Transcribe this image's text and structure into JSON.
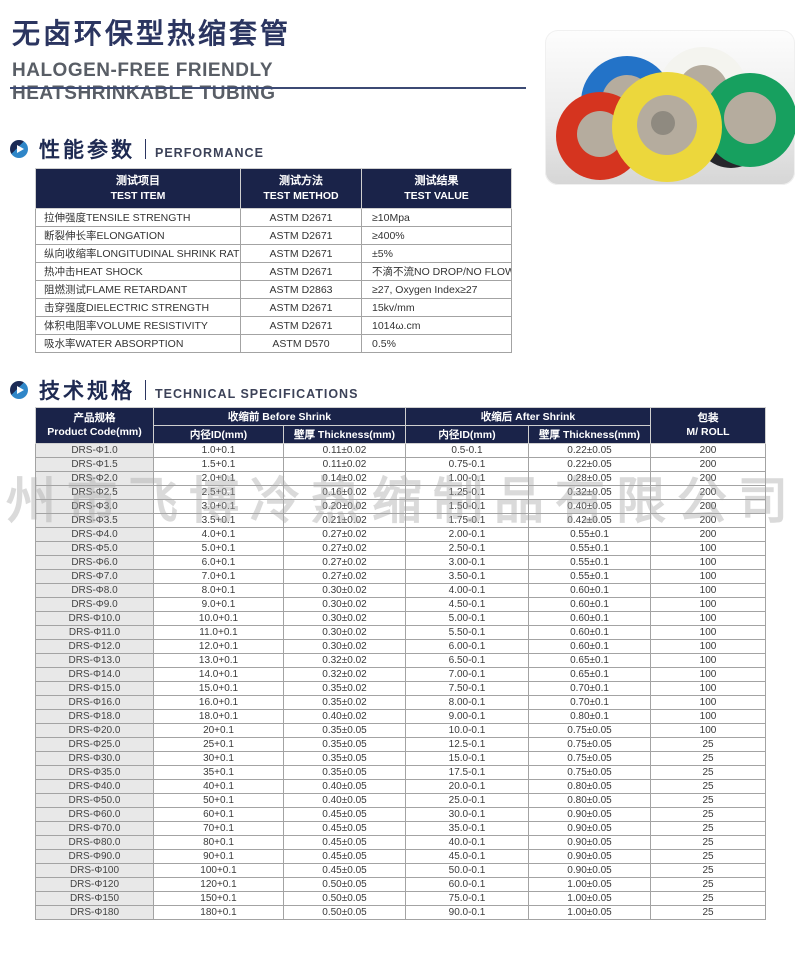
{
  "page": {
    "title_cn": "无卤环保型热缩套管",
    "title_en_line1": "HALOGEN-FREE FRIENDLY",
    "title_en_line2": "HEATSHRINKABLE TUBING"
  },
  "watermark_text": "州市飞博冷热缩制品有限公司",
  "colors": {
    "navy_header": "#1a2349",
    "title_navy": "#2b3560",
    "accent_blue": "#2f86c8"
  },
  "photo": {
    "description": "colored heat-shrink tubing rolls",
    "roll_colors": [
      "#2373c8",
      "#f4f4ef",
      "#26262b",
      "#d5341f",
      "#17a05f",
      "#ecd73c"
    ],
    "core_color": "#b5ac9e"
  },
  "performance": {
    "heading_cn": "性能参数",
    "heading_en": "PERFORMANCE",
    "columns": [
      {
        "cn": "测试项目",
        "en": "TEST ITEM"
      },
      {
        "cn": "测试方法",
        "en": "TEST METHOD"
      },
      {
        "cn": "测试结果",
        "en": "TEST VALUE"
      }
    ],
    "rows": [
      {
        "item": "拉伸强度TENSILE STRENGTH",
        "method": "ASTM D2671",
        "value": "≥10Mpa"
      },
      {
        "item": "断裂伸长率ELONGATION",
        "method": "ASTM D2671",
        "value": "≥400%"
      },
      {
        "item": "纵向收缩率LONGITUDINAL SHRINK RATIO",
        "method": "ASTM D2671",
        "value": "±5%"
      },
      {
        "item": "热冲击HEAT SHOCK",
        "method": "ASTM D2671",
        "value": "不滴不流NO DROP/NO FLOW"
      },
      {
        "item": "阻燃测试FLAME RETARDANT",
        "method": "ASTM D2863",
        "value": "≥27, Oxygen Index≥27"
      },
      {
        "item": "击穿强度DIELECTRIC STRENGTH",
        "method": "ASTM D2671",
        "value": "15kv/mm"
      },
      {
        "item": "体积电阻率VOLUME RESISTIVITY",
        "method": "ASTM D2671",
        "value": "1014ω.cm"
      },
      {
        "item": "吸水率WATER ABSORPTION",
        "method": "ASTM D570",
        "value": "0.5%"
      }
    ]
  },
  "specs": {
    "heading_cn": "技术规格",
    "heading_en": "TECHNICAL SPECIFICATIONS",
    "header": {
      "product_code_cn": "产品规格",
      "product_code_en": "Product Code(mm)",
      "before_shrink": "收缩前 Before Shrink",
      "after_shrink": "收缩后 After Shrink",
      "id_label": "内径ID(mm)",
      "thickness_label": "壁厚 Thickness(mm)",
      "pack_cn": "包装",
      "pack_en": "M/ ROLL"
    },
    "rows": [
      [
        "DRS-Φ1.0",
        "1.0+0.1",
        "0.11±0.02",
        "0.5-0.1",
        "0.22±0.05",
        "200"
      ],
      [
        "DRS-Φ1.5",
        "1.5+0.1",
        "0.11±0.02",
        "0.75-0.1",
        "0.22±0.05",
        "200"
      ],
      [
        "DRS-Φ2.0",
        "2.0+0.1",
        "0.14±0.02",
        "1.00-0.1",
        "0.28±0.05",
        "200"
      ],
      [
        "DRS-Φ2.5",
        "2.5+0.1",
        "0.16±0.02",
        "1.25-0.1",
        "0.32±0.05",
        "200"
      ],
      [
        "DRS-Φ3.0",
        "3.0+0.1",
        "0.20±0.02",
        "1.50-0.1",
        "0.40±0.05",
        "200"
      ],
      [
        "DRS-Φ3.5",
        "3.5+0.1",
        "0.21±0.02",
        "1.75-0.1",
        "0.42±0.05",
        "200"
      ],
      [
        "DRS-Φ4.0",
        "4.0+0.1",
        "0.27±0.02",
        "2.00-0.1",
        "0.55±0.1",
        "200"
      ],
      [
        "DRS-Φ5.0",
        "5.0+0.1",
        "0.27±0.02",
        "2.50-0.1",
        "0.55±0.1",
        "100"
      ],
      [
        "DRS-Φ6.0",
        "6.0+0.1",
        "0.27±0.02",
        "3.00-0.1",
        "0.55±0.1",
        "100"
      ],
      [
        "DRS-Φ7.0",
        "7.0+0.1",
        "0.27±0.02",
        "3.50-0.1",
        "0.55±0.1",
        "100"
      ],
      [
        "DRS-Φ8.0",
        "8.0+0.1",
        "0.30±0.02",
        "4.00-0.1",
        "0.60±0.1",
        "100"
      ],
      [
        "DRS-Φ9.0",
        "9.0+0.1",
        "0.30±0.02",
        "4.50-0.1",
        "0.60±0.1",
        "100"
      ],
      [
        "DRS-Φ10.0",
        "10.0+0.1",
        "0.30±0.02",
        "5.00-0.1",
        "0.60±0.1",
        "100"
      ],
      [
        "DRS-Φ11.0",
        "11.0+0.1",
        "0.30±0.02",
        "5.50-0.1",
        "0.60±0.1",
        "100"
      ],
      [
        "DRS-Φ12.0",
        "12.0+0.1",
        "0.30±0.02",
        "6.00-0.1",
        "0.60±0.1",
        "100"
      ],
      [
        "DRS-Φ13.0",
        "13.0+0.1",
        "0.32±0.02",
        "6.50-0.1",
        "0.65±0.1",
        "100"
      ],
      [
        "DRS-Φ14.0",
        "14.0+0.1",
        "0.32±0.02",
        "7.00-0.1",
        "0.65±0.1",
        "100"
      ],
      [
        "DRS-Φ15.0",
        "15.0+0.1",
        "0.35±0.02",
        "7.50-0.1",
        "0.70±0.1",
        "100"
      ],
      [
        "DRS-Φ16.0",
        "16.0+0.1",
        "0.35±0.02",
        "8.00-0.1",
        "0.70±0.1",
        "100"
      ],
      [
        "DRS-Φ18.0",
        "18.0+0.1",
        "0.40±0.02",
        "9.00-0.1",
        "0.80±0.1",
        "100"
      ],
      [
        "DRS-Φ20.0",
        "20+0.1",
        "0.35±0.05",
        "10.0-0.1",
        "0.75±0.05",
        "100"
      ],
      [
        "DRS-Φ25.0",
        "25+0.1",
        "0.35±0.05",
        "12.5-0.1",
        "0.75±0.05",
        "25"
      ],
      [
        "DRS-Φ30.0",
        "30+0.1",
        "0.35±0.05",
        "15.0-0.1",
        "0.75±0.05",
        "25"
      ],
      [
        "DRS-Φ35.0",
        "35+0.1",
        "0.35±0.05",
        "17.5-0.1",
        "0.75±0.05",
        "25"
      ],
      [
        "DRS-Φ40.0",
        "40+0.1",
        "0.40±0.05",
        "20.0-0.1",
        "0.80±0.05",
        "25"
      ],
      [
        "DRS-Φ50.0",
        "50+0.1",
        "0.40±0.05",
        "25.0-0.1",
        "0.80±0.05",
        "25"
      ],
      [
        "DRS-Φ60.0",
        "60+0.1",
        "0.45±0.05",
        "30.0-0.1",
        "0.90±0.05",
        "25"
      ],
      [
        "DRS-Φ70.0",
        "70+0.1",
        "0.45±0.05",
        "35.0-0.1",
        "0.90±0.05",
        "25"
      ],
      [
        "DRS-Φ80.0",
        "80+0.1",
        "0.45±0.05",
        "40.0-0.1",
        "0.90±0.05",
        "25"
      ],
      [
        "DRS-Φ90.0",
        "90+0.1",
        "0.45±0.05",
        "45.0-0.1",
        "0.90±0.05",
        "25"
      ],
      [
        "DRS-Φ100",
        "100+0.1",
        "0.45±0.05",
        "50.0-0.1",
        "0.90±0.05",
        "25"
      ],
      [
        "DRS-Φ120",
        "120+0.1",
        "0.50±0.05",
        "60.0-0.1",
        "1.00±0.05",
        "25"
      ],
      [
        "DRS-Φ150",
        "150+0.1",
        "0.50±0.05",
        "75.0-0.1",
        "1.00±0.05",
        "25"
      ],
      [
        "DRS-Φ180",
        "180+0.1",
        "0.50±0.05",
        "90.0-0.1",
        "1.00±0.05",
        "25"
      ]
    ]
  }
}
